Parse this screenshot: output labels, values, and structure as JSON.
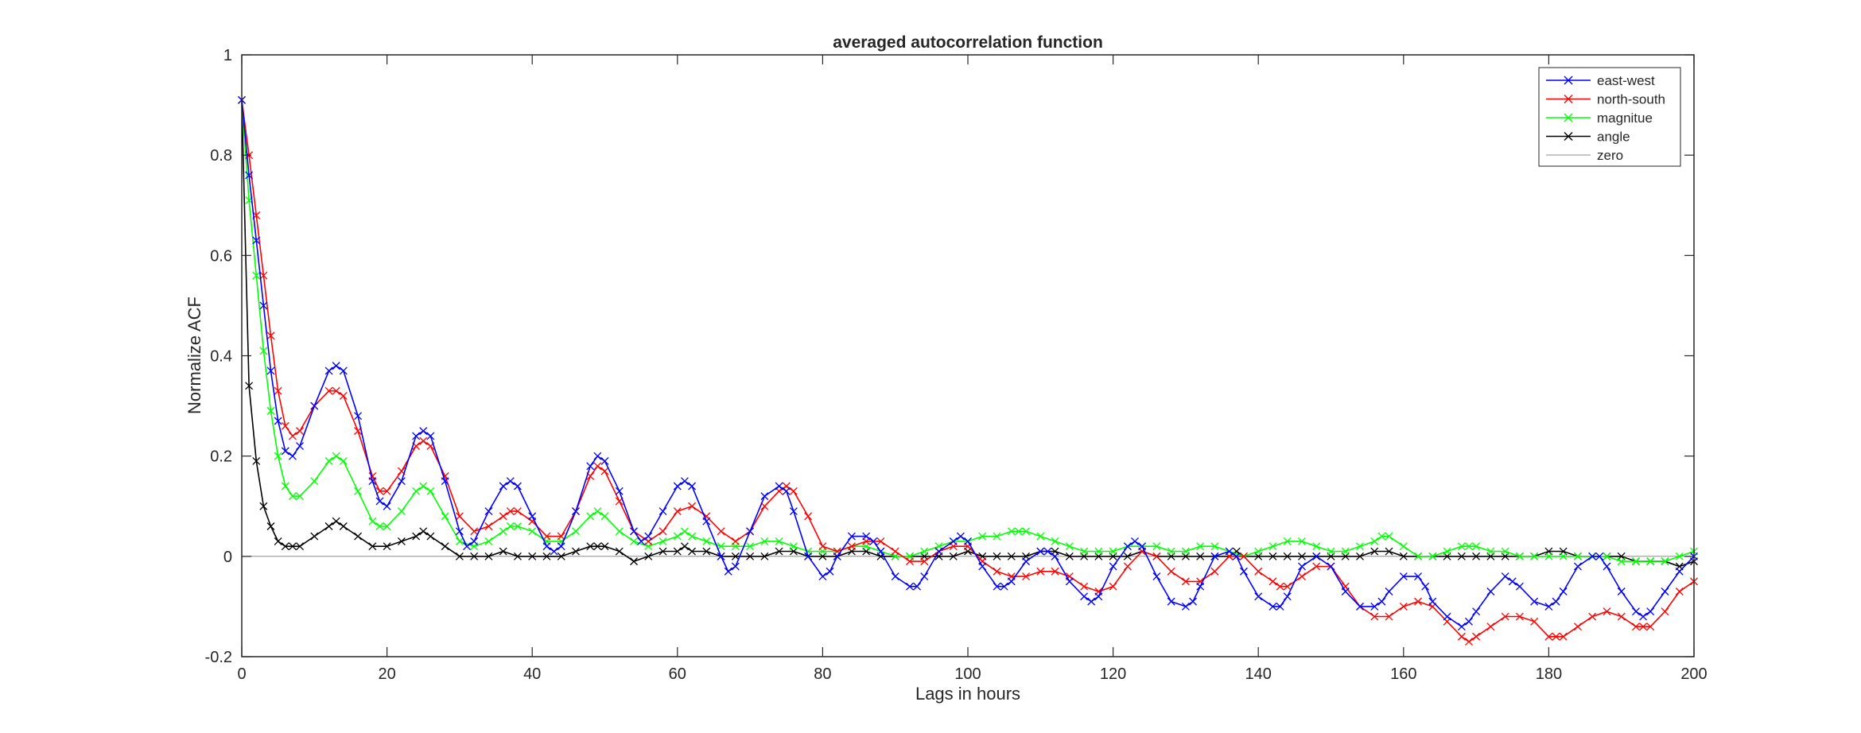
{
  "chart_data": {
    "type": "line",
    "title": "averaged autocorrelation function",
    "xlabel": "Lags in hours",
    "ylabel": "Normalize ACF",
    "xlim": [
      0,
      200
    ],
    "ylim": [
      -0.2,
      1
    ],
    "xticks": [
      0,
      20,
      40,
      60,
      80,
      100,
      120,
      140,
      160,
      180,
      200
    ],
    "yticks": [
      -0.2,
      0,
      0.2,
      0.4,
      0.6,
      0.8,
      1
    ],
    "xtick_labels": [
      "0",
      "20",
      "40",
      "60",
      "80",
      "100",
      "120",
      "140",
      "160",
      "180",
      "200"
    ],
    "ytick_labels": [
      "-0.2",
      "0",
      "0.2",
      "0.4",
      "0.6",
      "0.8",
      "1"
    ],
    "grid": false,
    "legend_position": "top-right",
    "marker": "x",
    "series": [
      {
        "name": "east-west",
        "color": "#0000ff",
        "x": [
          0,
          1,
          2,
          3,
          4,
          5,
          6,
          7,
          8,
          10,
          12,
          13,
          14,
          16,
          18,
          19,
          20,
          22,
          24,
          25,
          26,
          28,
          30,
          31,
          32,
          34,
          36,
          37,
          38,
          40,
          42,
          43,
          44,
          46,
          48,
          49,
          50,
          52,
          54,
          55,
          56,
          58,
          60,
          61,
          62,
          64,
          66,
          67,
          68,
          70,
          72,
          74,
          75,
          76,
          78,
          80,
          81,
          82,
          84,
          86,
          87,
          88,
          90,
          92,
          93,
          94,
          96,
          98,
          99,
          100,
          102,
          104,
          105,
          106,
          108,
          110,
          111,
          112,
          114,
          116,
          117,
          118,
          120,
          122,
          123,
          124,
          126,
          128,
          130,
          131,
          132,
          134,
          136,
          137,
          138,
          140,
          142,
          143,
          144,
          146,
          148,
          150,
          152,
          154,
          156,
          157,
          158,
          160,
          162,
          163,
          164,
          166,
          168,
          169,
          170,
          172,
          174,
          175,
          176,
          178,
          180,
          181,
          182,
          184,
          186,
          187,
          188,
          190,
          192,
          193,
          194,
          196,
          198,
          200
        ],
        "y": [
          0.91,
          0.76,
          0.63,
          0.5,
          0.37,
          0.27,
          0.21,
          0.2,
          0.22,
          0.3,
          0.37,
          0.38,
          0.37,
          0.28,
          0.15,
          0.11,
          0.1,
          0.15,
          0.24,
          0.25,
          0.24,
          0.15,
          0.05,
          0.02,
          0.03,
          0.09,
          0.14,
          0.15,
          0.14,
          0.08,
          0.02,
          0.01,
          0.02,
          0.09,
          0.18,
          0.2,
          0.19,
          0.13,
          0.05,
          0.03,
          0.04,
          0.09,
          0.14,
          0.15,
          0.14,
          0.07,
          0.0,
          -0.03,
          -0.02,
          0.05,
          0.12,
          0.14,
          0.13,
          0.09,
          0.0,
          -0.04,
          -0.03,
          0.0,
          0.04,
          0.04,
          0.03,
          0.01,
          -0.04,
          -0.06,
          -0.06,
          -0.04,
          0.01,
          0.03,
          0.04,
          0.03,
          -0.02,
          -0.06,
          -0.06,
          -0.05,
          -0.01,
          0.01,
          0.01,
          0.0,
          -0.05,
          -0.08,
          -0.09,
          -0.08,
          -0.02,
          0.02,
          0.03,
          0.02,
          -0.04,
          -0.09,
          -0.1,
          -0.09,
          -0.06,
          0.0,
          0.01,
          0.0,
          -0.03,
          -0.08,
          -0.1,
          -0.1,
          -0.08,
          -0.02,
          0.0,
          -0.02,
          -0.07,
          -0.1,
          -0.1,
          -0.09,
          -0.07,
          -0.04,
          -0.04,
          -0.06,
          -0.09,
          -0.12,
          -0.14,
          -0.13,
          -0.11,
          -0.07,
          -0.04,
          -0.05,
          -0.06,
          -0.09,
          -0.1,
          -0.09,
          -0.07,
          -0.02,
          0.0,
          0.0,
          -0.02,
          -0.07,
          -0.11,
          -0.12,
          -0.11,
          -0.07,
          -0.03,
          0.0
        ]
      },
      {
        "name": "north-south",
        "color": "#ff0000",
        "x": [
          0,
          1,
          2,
          3,
          4,
          5,
          6,
          7,
          8,
          10,
          12,
          13,
          14,
          16,
          18,
          19,
          20,
          22,
          24,
          25,
          26,
          28,
          30,
          32,
          34,
          36,
          37,
          38,
          40,
          42,
          44,
          46,
          48,
          49,
          50,
          52,
          54,
          56,
          58,
          60,
          62,
          64,
          66,
          68,
          70,
          72,
          74,
          75,
          76,
          78,
          80,
          82,
          84,
          86,
          88,
          90,
          92,
          94,
          96,
          98,
          100,
          102,
          104,
          106,
          108,
          110,
          112,
          114,
          116,
          118,
          120,
          122,
          124,
          126,
          128,
          130,
          132,
          134,
          136,
          138,
          140,
          142,
          143,
          144,
          146,
          148,
          150,
          152,
          154,
          156,
          158,
          160,
          162,
          164,
          166,
          168,
          169,
          170,
          172,
          174,
          176,
          178,
          180,
          181,
          182,
          184,
          186,
          188,
          190,
          192,
          193,
          194,
          196,
          198,
          200
        ],
        "y": [
          0.91,
          0.8,
          0.68,
          0.56,
          0.44,
          0.33,
          0.26,
          0.24,
          0.25,
          0.3,
          0.33,
          0.33,
          0.32,
          0.25,
          0.16,
          0.13,
          0.13,
          0.17,
          0.22,
          0.23,
          0.22,
          0.16,
          0.08,
          0.05,
          0.06,
          0.08,
          0.09,
          0.09,
          0.07,
          0.04,
          0.04,
          0.09,
          0.16,
          0.18,
          0.17,
          0.11,
          0.05,
          0.03,
          0.05,
          0.09,
          0.1,
          0.08,
          0.05,
          0.03,
          0.05,
          0.1,
          0.13,
          0.14,
          0.13,
          0.08,
          0.02,
          0.01,
          0.02,
          0.03,
          0.03,
          0.01,
          -0.01,
          -0.01,
          0.01,
          0.02,
          0.02,
          -0.01,
          -0.03,
          -0.04,
          -0.04,
          -0.03,
          -0.03,
          -0.04,
          -0.06,
          -0.07,
          -0.06,
          -0.02,
          0.01,
          0.0,
          -0.03,
          -0.05,
          -0.05,
          -0.03,
          0.0,
          0.0,
          -0.03,
          -0.05,
          -0.06,
          -0.06,
          -0.04,
          -0.02,
          -0.02,
          -0.06,
          -0.1,
          -0.12,
          -0.12,
          -0.1,
          -0.09,
          -0.1,
          -0.13,
          -0.16,
          -0.17,
          -0.16,
          -0.14,
          -0.12,
          -0.12,
          -0.13,
          -0.16,
          -0.16,
          -0.16,
          -0.14,
          -0.12,
          -0.11,
          -0.12,
          -0.14,
          -0.14,
          -0.14,
          -0.11,
          -0.07,
          -0.05
        ]
      },
      {
        "name": "magnitue",
        "color": "#00ff00",
        "x": [
          0,
          1,
          2,
          3,
          4,
          5,
          6,
          7,
          8,
          10,
          12,
          13,
          14,
          16,
          18,
          19,
          20,
          22,
          24,
          25,
          26,
          28,
          30,
          32,
          34,
          36,
          37,
          38,
          40,
          42,
          44,
          46,
          48,
          49,
          50,
          52,
          54,
          56,
          58,
          60,
          61,
          62,
          64,
          66,
          68,
          70,
          72,
          74,
          76,
          78,
          80,
          82,
          84,
          86,
          88,
          90,
          92,
          94,
          96,
          98,
          100,
          102,
          104,
          106,
          107,
          108,
          110,
          112,
          114,
          116,
          118,
          120,
          122,
          124,
          126,
          128,
          130,
          132,
          134,
          136,
          138,
          140,
          142,
          144,
          146,
          148,
          150,
          152,
          154,
          156,
          157,
          158,
          160,
          162,
          164,
          166,
          168,
          169,
          170,
          172,
          174,
          176,
          178,
          180,
          182,
          184,
          186,
          188,
          190,
          192,
          194,
          196,
          198,
          200
        ],
        "y": [
          0.91,
          0.71,
          0.56,
          0.41,
          0.29,
          0.2,
          0.14,
          0.12,
          0.12,
          0.15,
          0.19,
          0.2,
          0.19,
          0.13,
          0.07,
          0.06,
          0.06,
          0.09,
          0.13,
          0.14,
          0.13,
          0.08,
          0.03,
          0.02,
          0.03,
          0.05,
          0.06,
          0.06,
          0.05,
          0.03,
          0.03,
          0.05,
          0.08,
          0.09,
          0.08,
          0.05,
          0.03,
          0.02,
          0.03,
          0.04,
          0.05,
          0.04,
          0.03,
          0.02,
          0.02,
          0.02,
          0.03,
          0.03,
          0.02,
          0.01,
          0.01,
          0.01,
          0.02,
          0.02,
          0.01,
          0.0,
          0.0,
          0.01,
          0.02,
          0.03,
          0.03,
          0.04,
          0.04,
          0.05,
          0.05,
          0.05,
          0.04,
          0.03,
          0.02,
          0.01,
          0.01,
          0.01,
          0.02,
          0.02,
          0.02,
          0.01,
          0.01,
          0.02,
          0.02,
          0.01,
          0.0,
          0.01,
          0.02,
          0.03,
          0.03,
          0.02,
          0.01,
          0.01,
          0.02,
          0.03,
          0.04,
          0.04,
          0.02,
          0.0,
          0.0,
          0.01,
          0.02,
          0.02,
          0.02,
          0.01,
          0.01,
          0.0,
          0.0,
          0.0,
          0.0,
          0.0,
          0.0,
          0.0,
          -0.01,
          -0.01,
          -0.01,
          -0.01,
          0.0,
          0.01
        ]
      },
      {
        "name": "angle",
        "color": "#000000",
        "x": [
          0,
          1,
          2,
          3,
          4,
          5,
          6,
          7,
          8,
          10,
          12,
          13,
          14,
          16,
          18,
          20,
          22,
          24,
          25,
          26,
          28,
          30,
          32,
          34,
          36,
          38,
          40,
          42,
          44,
          46,
          48,
          49,
          50,
          52,
          54,
          56,
          58,
          60,
          61,
          62,
          64,
          66,
          68,
          70,
          72,
          74,
          76,
          78,
          80,
          82,
          84,
          86,
          88,
          90,
          92,
          94,
          96,
          98,
          100,
          102,
          104,
          106,
          108,
          110,
          112,
          114,
          116,
          118,
          120,
          122,
          124,
          126,
          128,
          130,
          132,
          134,
          136,
          137,
          138,
          140,
          142,
          144,
          146,
          148,
          150,
          152,
          154,
          156,
          158,
          160,
          162,
          164,
          166,
          168,
          170,
          172,
          174,
          176,
          178,
          180,
          182,
          184,
          186,
          188,
          190,
          192,
          194,
          196,
          198,
          200
        ],
        "y": [
          0.91,
          0.34,
          0.19,
          0.1,
          0.06,
          0.03,
          0.02,
          0.02,
          0.02,
          0.04,
          0.06,
          0.07,
          0.06,
          0.04,
          0.02,
          0.02,
          0.03,
          0.04,
          0.05,
          0.04,
          0.02,
          0.0,
          0.0,
          0.0,
          0.01,
          0.0,
          0.0,
          0.0,
          0.0,
          0.01,
          0.02,
          0.02,
          0.02,
          0.01,
          -0.01,
          0.0,
          0.01,
          0.01,
          0.02,
          0.01,
          0.01,
          0.0,
          0.0,
          0.0,
          0.0,
          0.01,
          0.01,
          0.0,
          0.0,
          0.0,
          0.01,
          0.01,
          0.0,
          0.0,
          0.0,
          0.0,
          0.0,
          0.0,
          0.01,
          0.0,
          0.0,
          0.0,
          0.0,
          0.01,
          0.01,
          0.0,
          0.0,
          0.0,
          0.0,
          0.0,
          0.01,
          0.0,
          0.0,
          0.0,
          0.0,
          0.0,
          0.0,
          0.01,
          0.0,
          0.0,
          0.0,
          0.0,
          0.0,
          0.0,
          0.0,
          0.0,
          0.0,
          0.01,
          0.01,
          0.0,
          0.0,
          0.0,
          0.0,
          0.0,
          0.0,
          0.0,
          0.0,
          0.0,
          0.0,
          0.01,
          0.01,
          0.0,
          0.0,
          0.0,
          0.0,
          -0.01,
          -0.01,
          -0.01,
          -0.02,
          -0.01
        ]
      },
      {
        "name": "zero",
        "color": "#8c8c8c",
        "x": [
          0,
          200
        ],
        "y": [
          0,
          0
        ],
        "marker": "none"
      }
    ]
  }
}
